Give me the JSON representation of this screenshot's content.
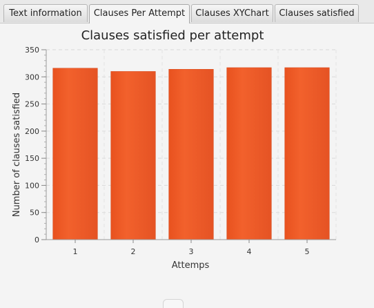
{
  "tabs": [
    {
      "label": "Text information",
      "selected": false
    },
    {
      "label": "Clauses Per Attempt",
      "selected": true
    },
    {
      "label": "Clauses XYChart",
      "selected": false
    },
    {
      "label": "Clauses satisfied",
      "selected": false
    }
  ],
  "chart_data": {
    "type": "bar",
    "title": "Clauses satisfied per attempt",
    "xlabel": "Attemps",
    "ylabel": "Number of clauses satisfied",
    "categories": [
      "1",
      "2",
      "3",
      "4",
      "5"
    ],
    "values": [
      316,
      310,
      314,
      317,
      317
    ],
    "ylim": [
      0,
      350
    ],
    "yticks": [
      0,
      50,
      100,
      150,
      200,
      250,
      300,
      350
    ],
    "grid": true,
    "legend": "none",
    "bar_color": "#f05a28"
  }
}
